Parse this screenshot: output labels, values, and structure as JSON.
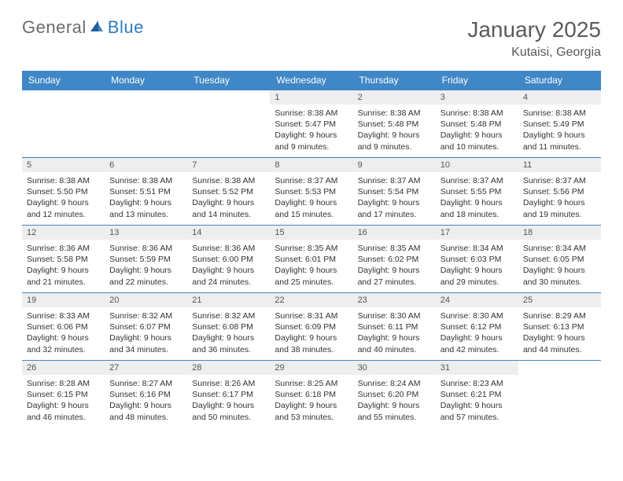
{
  "brand": {
    "word1": "General",
    "word2": "Blue",
    "color_gray": "#6b6b6b",
    "color_blue": "#2f7bbf"
  },
  "title": "January 2025",
  "location": "Kutaisi, Georgia",
  "header_bg": "#3f87c6",
  "daybar_bg": "#eeeeee",
  "text_color": "#333333",
  "day_names": [
    "Sunday",
    "Monday",
    "Tuesday",
    "Wednesday",
    "Thursday",
    "Friday",
    "Saturday"
  ],
  "weeks": [
    [
      null,
      null,
      null,
      {
        "n": "1",
        "sr": "8:38 AM",
        "ss": "5:47 PM",
        "dh": "9",
        "dm": "9"
      },
      {
        "n": "2",
        "sr": "8:38 AM",
        "ss": "5:48 PM",
        "dh": "9",
        "dm": "9"
      },
      {
        "n": "3",
        "sr": "8:38 AM",
        "ss": "5:48 PM",
        "dh": "9",
        "dm": "10"
      },
      {
        "n": "4",
        "sr": "8:38 AM",
        "ss": "5:49 PM",
        "dh": "9",
        "dm": "11"
      }
    ],
    [
      {
        "n": "5",
        "sr": "8:38 AM",
        "ss": "5:50 PM",
        "dh": "9",
        "dm": "12"
      },
      {
        "n": "6",
        "sr": "8:38 AM",
        "ss": "5:51 PM",
        "dh": "9",
        "dm": "13"
      },
      {
        "n": "7",
        "sr": "8:38 AM",
        "ss": "5:52 PM",
        "dh": "9",
        "dm": "14"
      },
      {
        "n": "8",
        "sr": "8:37 AM",
        "ss": "5:53 PM",
        "dh": "9",
        "dm": "15"
      },
      {
        "n": "9",
        "sr": "8:37 AM",
        "ss": "5:54 PM",
        "dh": "9",
        "dm": "17"
      },
      {
        "n": "10",
        "sr": "8:37 AM",
        "ss": "5:55 PM",
        "dh": "9",
        "dm": "18"
      },
      {
        "n": "11",
        "sr": "8:37 AM",
        "ss": "5:56 PM",
        "dh": "9",
        "dm": "19"
      }
    ],
    [
      {
        "n": "12",
        "sr": "8:36 AM",
        "ss": "5:58 PM",
        "dh": "9",
        "dm": "21"
      },
      {
        "n": "13",
        "sr": "8:36 AM",
        "ss": "5:59 PM",
        "dh": "9",
        "dm": "22"
      },
      {
        "n": "14",
        "sr": "8:36 AM",
        "ss": "6:00 PM",
        "dh": "9",
        "dm": "24"
      },
      {
        "n": "15",
        "sr": "8:35 AM",
        "ss": "6:01 PM",
        "dh": "9",
        "dm": "25"
      },
      {
        "n": "16",
        "sr": "8:35 AM",
        "ss": "6:02 PM",
        "dh": "9",
        "dm": "27"
      },
      {
        "n": "17",
        "sr": "8:34 AM",
        "ss": "6:03 PM",
        "dh": "9",
        "dm": "29"
      },
      {
        "n": "18",
        "sr": "8:34 AM",
        "ss": "6:05 PM",
        "dh": "9",
        "dm": "30"
      }
    ],
    [
      {
        "n": "19",
        "sr": "8:33 AM",
        "ss": "6:06 PM",
        "dh": "9",
        "dm": "32"
      },
      {
        "n": "20",
        "sr": "8:32 AM",
        "ss": "6:07 PM",
        "dh": "9",
        "dm": "34"
      },
      {
        "n": "21",
        "sr": "8:32 AM",
        "ss": "6:08 PM",
        "dh": "9",
        "dm": "36"
      },
      {
        "n": "22",
        "sr": "8:31 AM",
        "ss": "6:09 PM",
        "dh": "9",
        "dm": "38"
      },
      {
        "n": "23",
        "sr": "8:30 AM",
        "ss": "6:11 PM",
        "dh": "9",
        "dm": "40"
      },
      {
        "n": "24",
        "sr": "8:30 AM",
        "ss": "6:12 PM",
        "dh": "9",
        "dm": "42"
      },
      {
        "n": "25",
        "sr": "8:29 AM",
        "ss": "6:13 PM",
        "dh": "9",
        "dm": "44"
      }
    ],
    [
      {
        "n": "26",
        "sr": "8:28 AM",
        "ss": "6:15 PM",
        "dh": "9",
        "dm": "46"
      },
      {
        "n": "27",
        "sr": "8:27 AM",
        "ss": "6:16 PM",
        "dh": "9",
        "dm": "48"
      },
      {
        "n": "28",
        "sr": "8:26 AM",
        "ss": "6:17 PM",
        "dh": "9",
        "dm": "50"
      },
      {
        "n": "29",
        "sr": "8:25 AM",
        "ss": "6:18 PM",
        "dh": "9",
        "dm": "53"
      },
      {
        "n": "30",
        "sr": "8:24 AM",
        "ss": "6:20 PM",
        "dh": "9",
        "dm": "55"
      },
      {
        "n": "31",
        "sr": "8:23 AM",
        "ss": "6:21 PM",
        "dh": "9",
        "dm": "57"
      },
      null
    ]
  ],
  "labels": {
    "sunrise": "Sunrise:",
    "sunset": "Sunset:",
    "daylight": "Daylight:",
    "hours": "hours",
    "and": "and",
    "minutes": "minutes."
  }
}
